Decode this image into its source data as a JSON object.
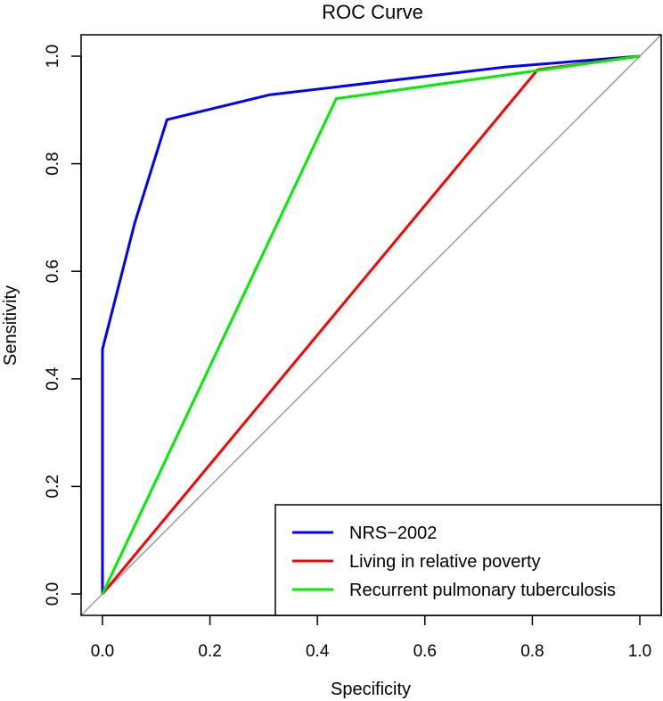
{
  "chart_data": {
    "type": "line",
    "title": "ROC Curve",
    "xlabel": "Specificity",
    "ylabel": "Sensitivity",
    "xlim": [
      0.0,
      1.0
    ],
    "ylim": [
      0.0,
      1.0
    ],
    "xticks": [
      "0.0",
      "0.2",
      "0.4",
      "0.6",
      "0.8",
      "1.0"
    ],
    "yticks": [
      "0.0",
      "0.2",
      "0.4",
      "0.6",
      "0.8",
      "1.0"
    ],
    "grid": false,
    "legend_position": "bottom-right",
    "reference_line": {
      "x": [
        0,
        1
      ],
      "y": [
        0,
        1
      ],
      "color": "#999999"
    },
    "series": [
      {
        "name": "NRS−2002",
        "color": "#0000ff",
        "x": [
          0.0,
          0.0,
          0.06,
          0.12,
          0.31,
          0.75,
          1.0
        ],
        "y": [
          0.0,
          0.455,
          0.69,
          0.882,
          0.928,
          0.98,
          1.0
        ]
      },
      {
        "name": "Living in relative poverty",
        "color": "#ff0000",
        "x": [
          0.0,
          0.81,
          1.0
        ],
        "y": [
          0.0,
          0.975,
          1.0
        ]
      },
      {
        "name": "Recurrent pulmonary tuberculosis",
        "color": "#00ee00",
        "x": [
          0.0,
          0.435,
          1.0
        ],
        "y": [
          0.0,
          0.921,
          1.0
        ]
      }
    ]
  }
}
